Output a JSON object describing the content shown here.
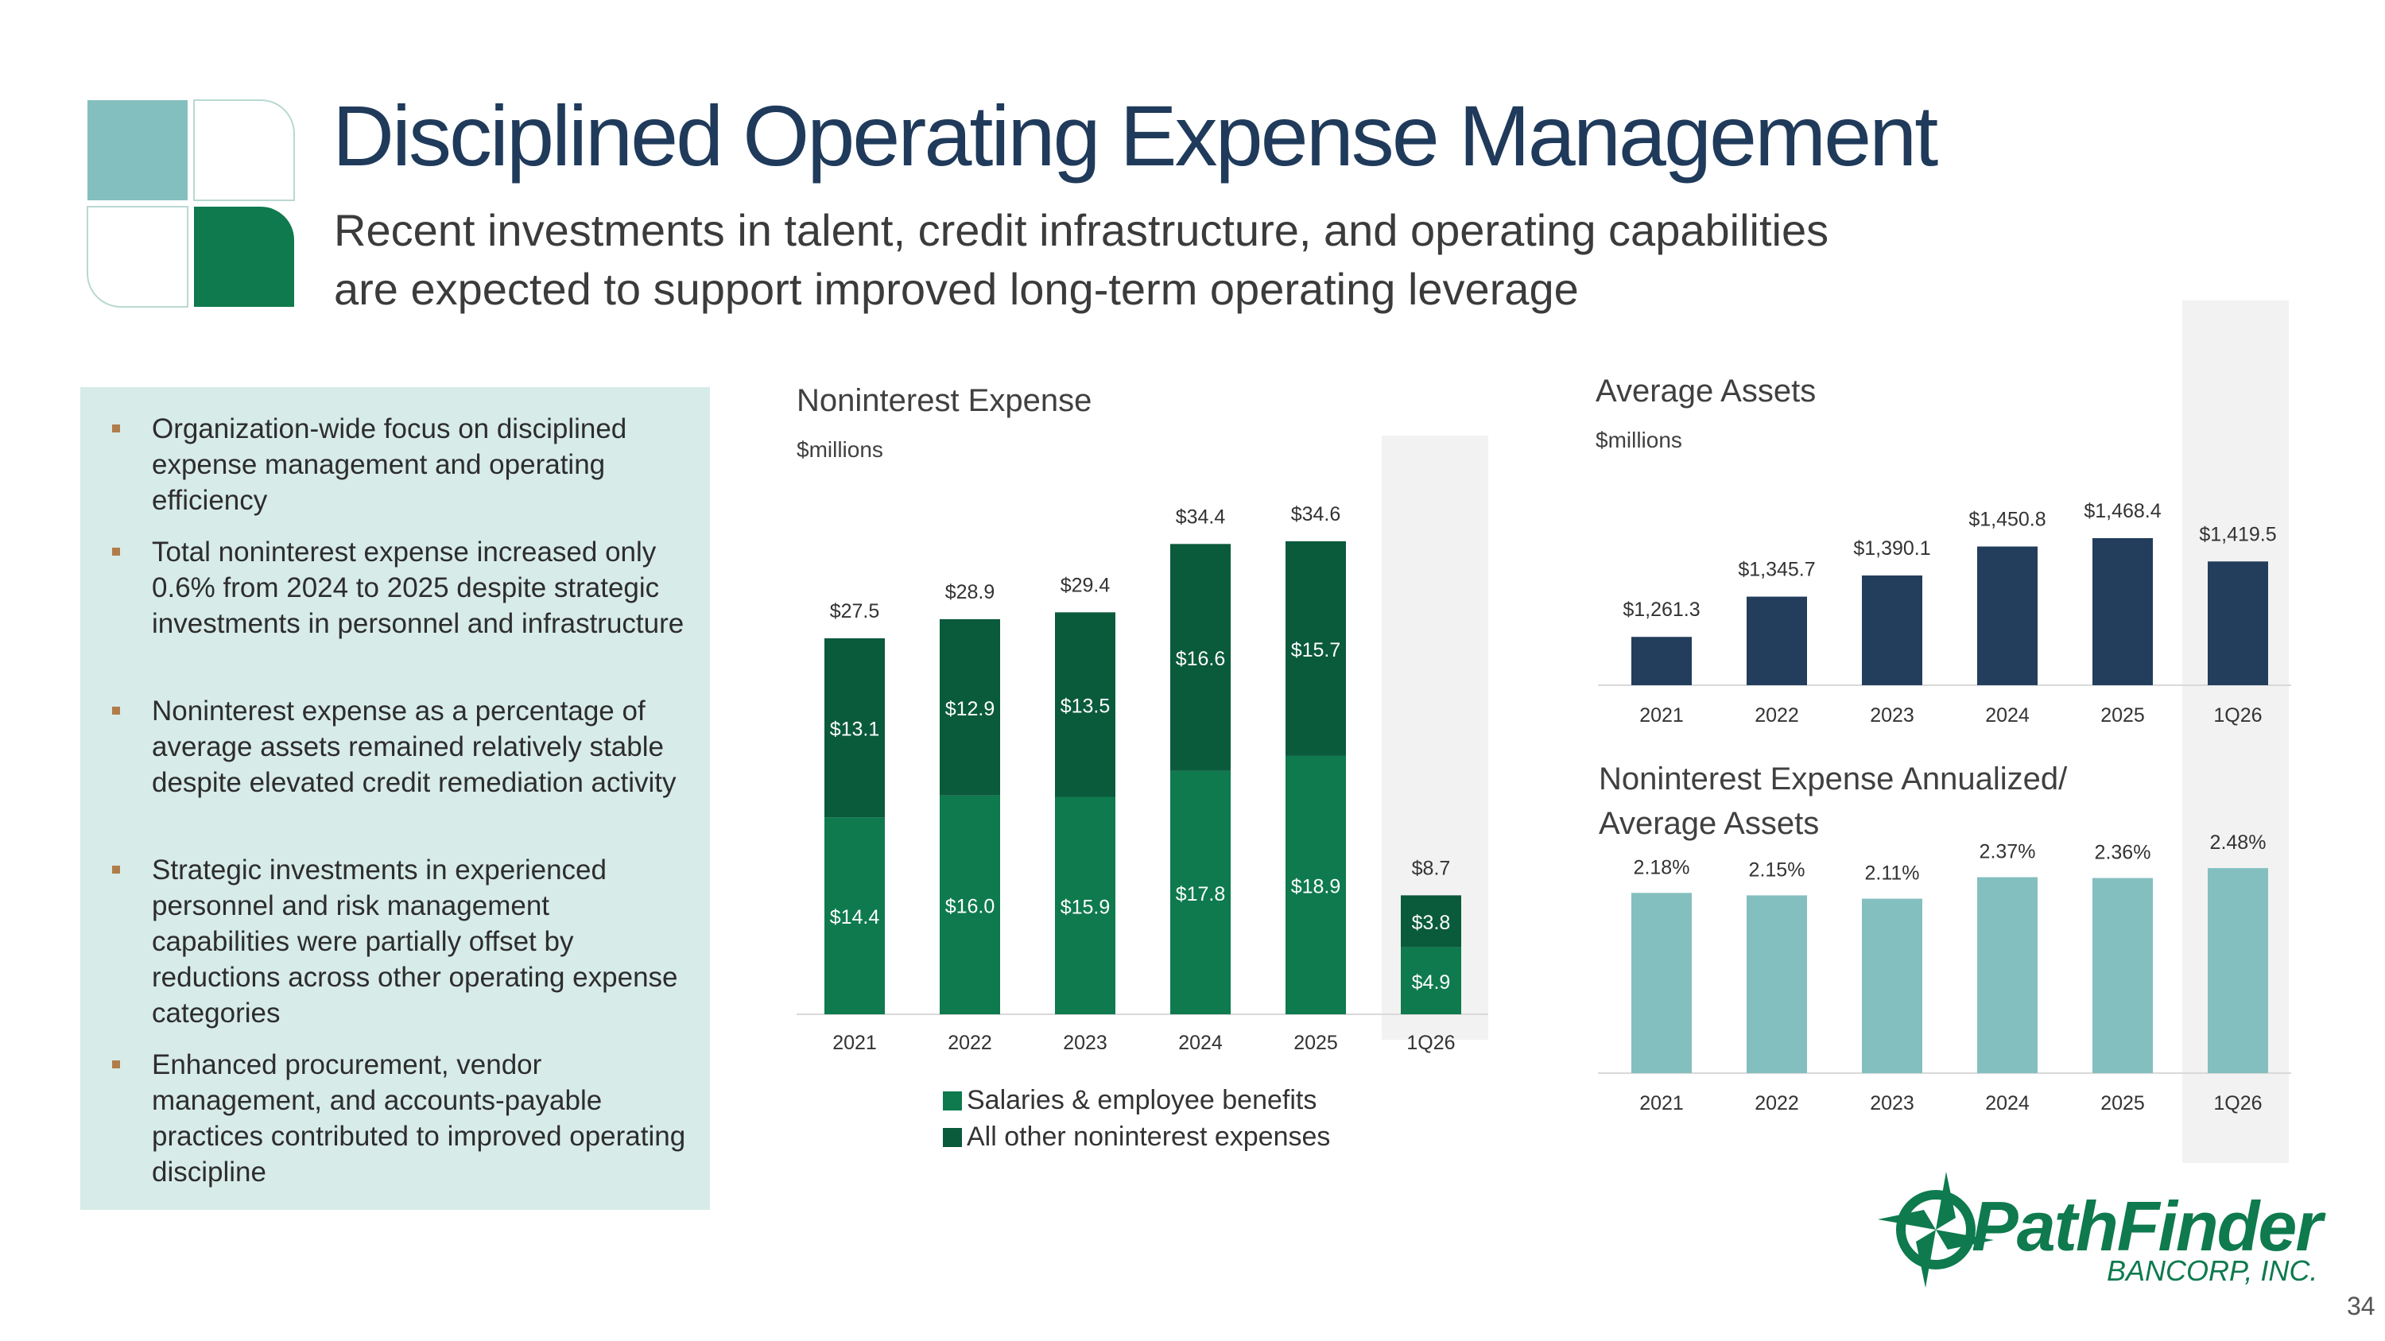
{
  "title": "Disciplined Operating Expense Management",
  "subtitle": {
    "line1": "Recent investments in talent, credit infrastructure, and operating capabilities",
    "line2": "are expected to support improved long-term operating leverage"
  },
  "bullets": [
    "Organization-wide focus on disciplined expense management and operating efficiency",
    "Total noninterest expense increased only 0.6% from 2024 to 2025 despite strategic investments in personnel and infrastructure",
    "Noninterest expense as a percentage of average assets remained relatively stable despite elevated credit remediation activity",
    "Strategic investments in experienced personnel and risk management capabilities were partially offset by reductions across other operating expense categories",
    "Enhanced procurement, vendor management, and accounts-payable practices contributed to improved operating discipline"
  ],
  "colors": {
    "title": "#1f3a5a",
    "salaries": "#0e7a4e",
    "other": "#0a5a3c",
    "assets": "#233d5c",
    "ratio": "#84bfbf",
    "highlight": "#f2f2f2",
    "panel": "#d7ebe8",
    "bullet_marker": "#b07d4a"
  },
  "icons": [
    "decorative-tile-icon",
    "pathfinder-compass-icon"
  ],
  "chart_data": [
    {
      "type": "bar",
      "stacked": true,
      "title": "Noninterest Expense",
      "unit": "$millions",
      "categories": [
        "2021",
        "2022",
        "2023",
        "2024",
        "2025",
        "1Q26"
      ],
      "series": [
        {
          "name": "Salaries & employee benefits",
          "values": [
            14.4,
            16.0,
            15.9,
            17.8,
            18.9,
            4.9
          ],
          "labels": [
            "$14.4",
            "$16.0",
            "$15.9",
            "$17.8",
            "$18.9",
            "$4.9"
          ]
        },
        {
          "name": "All other noninterest expenses",
          "values": [
            13.1,
            12.9,
            13.5,
            16.6,
            15.7,
            3.8
          ],
          "labels": [
            "$13.1",
            "$12.9",
            "$13.5",
            "$16.6",
            "$15.7",
            "$3.8"
          ]
        }
      ],
      "totals": [
        27.5,
        28.9,
        29.4,
        34.4,
        34.6,
        8.7
      ],
      "total_labels": [
        "$27.5",
        "$28.9",
        "$29.4",
        "$34.4",
        "$34.6",
        "$8.7"
      ],
      "highlight": "1Q26",
      "legend": "bottom"
    },
    {
      "type": "bar",
      "title": "Average Assets",
      "unit": "$millions",
      "categories": [
        "2021",
        "2022",
        "2023",
        "2024",
        "2025",
        "1Q26"
      ],
      "values": [
        1261.3,
        1345.7,
        1390.1,
        1450.8,
        1468.4,
        1419.5
      ],
      "labels": [
        "$1,261.3",
        "$1,345.7",
        "$1,390.1",
        "$1,450.8",
        "$1,468.4",
        "$1,419.5"
      ],
      "highlight": "1Q26"
    },
    {
      "type": "bar",
      "title_line1": "Noninterest Expense Annualized/",
      "title_line2": "Average Assets",
      "categories": [
        "2021",
        "2022",
        "2023",
        "2024",
        "2025",
        "1Q26"
      ],
      "values": [
        2.18,
        2.15,
        2.11,
        2.37,
        2.36,
        2.48
      ],
      "labels": [
        "2.18%",
        "2.15%",
        "2.11%",
        "2.37%",
        "2.36%",
        "2.48%"
      ],
      "highlight": "1Q26"
    }
  ],
  "logo": {
    "name": "PathFinder",
    "sub": "BANCORP, INC."
  },
  "page_number": "34"
}
